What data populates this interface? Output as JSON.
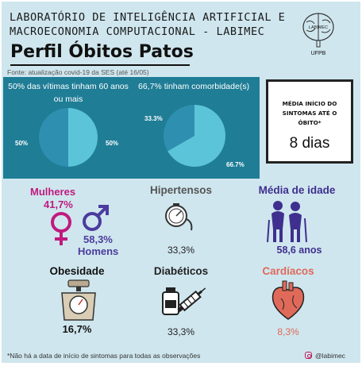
{
  "header": {
    "line1": "LABORATÓRIO DE INTELIGÊNCIA ARTIFICIAL E",
    "line2": "MACROECONOMIA COMPUTACIONAL - LABIMEC",
    "title": "Perfil Óbitos Patos",
    "source": "Fonte: atualização covid-19 da SES (até 16/05)",
    "logo_inner": "LABIMEC",
    "logo_under": "UFPB",
    "logo_icon": "brain-icon"
  },
  "colors": {
    "band": "#1f7d96",
    "pie_light": "#5bc4d8",
    "pie_dark": "#2f8fb0",
    "women": "#c01a7e",
    "men": "#4b3c9e",
    "age": "#3f2f8f",
    "cardiac": "#e06a5a"
  },
  "chart_data": [
    {
      "type": "pie",
      "title": "50% das vítimas tinham 60 anos ou mais",
      "slices": [
        {
          "value": 50,
          "label": "50%"
        },
        {
          "value": 50,
          "label": "50%"
        }
      ]
    },
    {
      "type": "pie",
      "title": "66,7% tinham comorbidade(s)",
      "slices": [
        {
          "value": 66.7,
          "label": "66.7%"
        },
        {
          "value": 33.3,
          "label": "33.3%"
        }
      ]
    }
  ],
  "highlight": {
    "label": "MÉDIA INÍCIO DO SINTOMAS ATÉ O ÓBITO*",
    "value": "8 dias"
  },
  "stats": {
    "mulheres": {
      "label": "Mulheres",
      "value": "41,7%",
      "icon": "female-symbol-icon"
    },
    "homens": {
      "label": "Homens",
      "value": "58,3%",
      "icon": "male-symbol-icon"
    },
    "hipertensos": {
      "label": "Hipertensos",
      "value": "33,3%",
      "icon": "blood-pressure-gauge-icon"
    },
    "idade": {
      "label": "Média de idade",
      "value": "58,6 anos",
      "icon": "elderly-couple-icon"
    },
    "obesidade": {
      "label": "Obesidade",
      "value": "16,7%",
      "icon": "weight-scale-icon"
    },
    "diabeticos": {
      "label": "Diabéticos",
      "value": "33,3%",
      "icon": "insulin-syringe-icon"
    },
    "cardiacos": {
      "label": "Cardíacos",
      "value": "8,3%",
      "icon": "heart-icon"
    }
  },
  "footer": {
    "note": "*Não há a data de início de sintomas para todas as observações",
    "handle": "@labimec",
    "handle_icon": "instagram-icon"
  }
}
